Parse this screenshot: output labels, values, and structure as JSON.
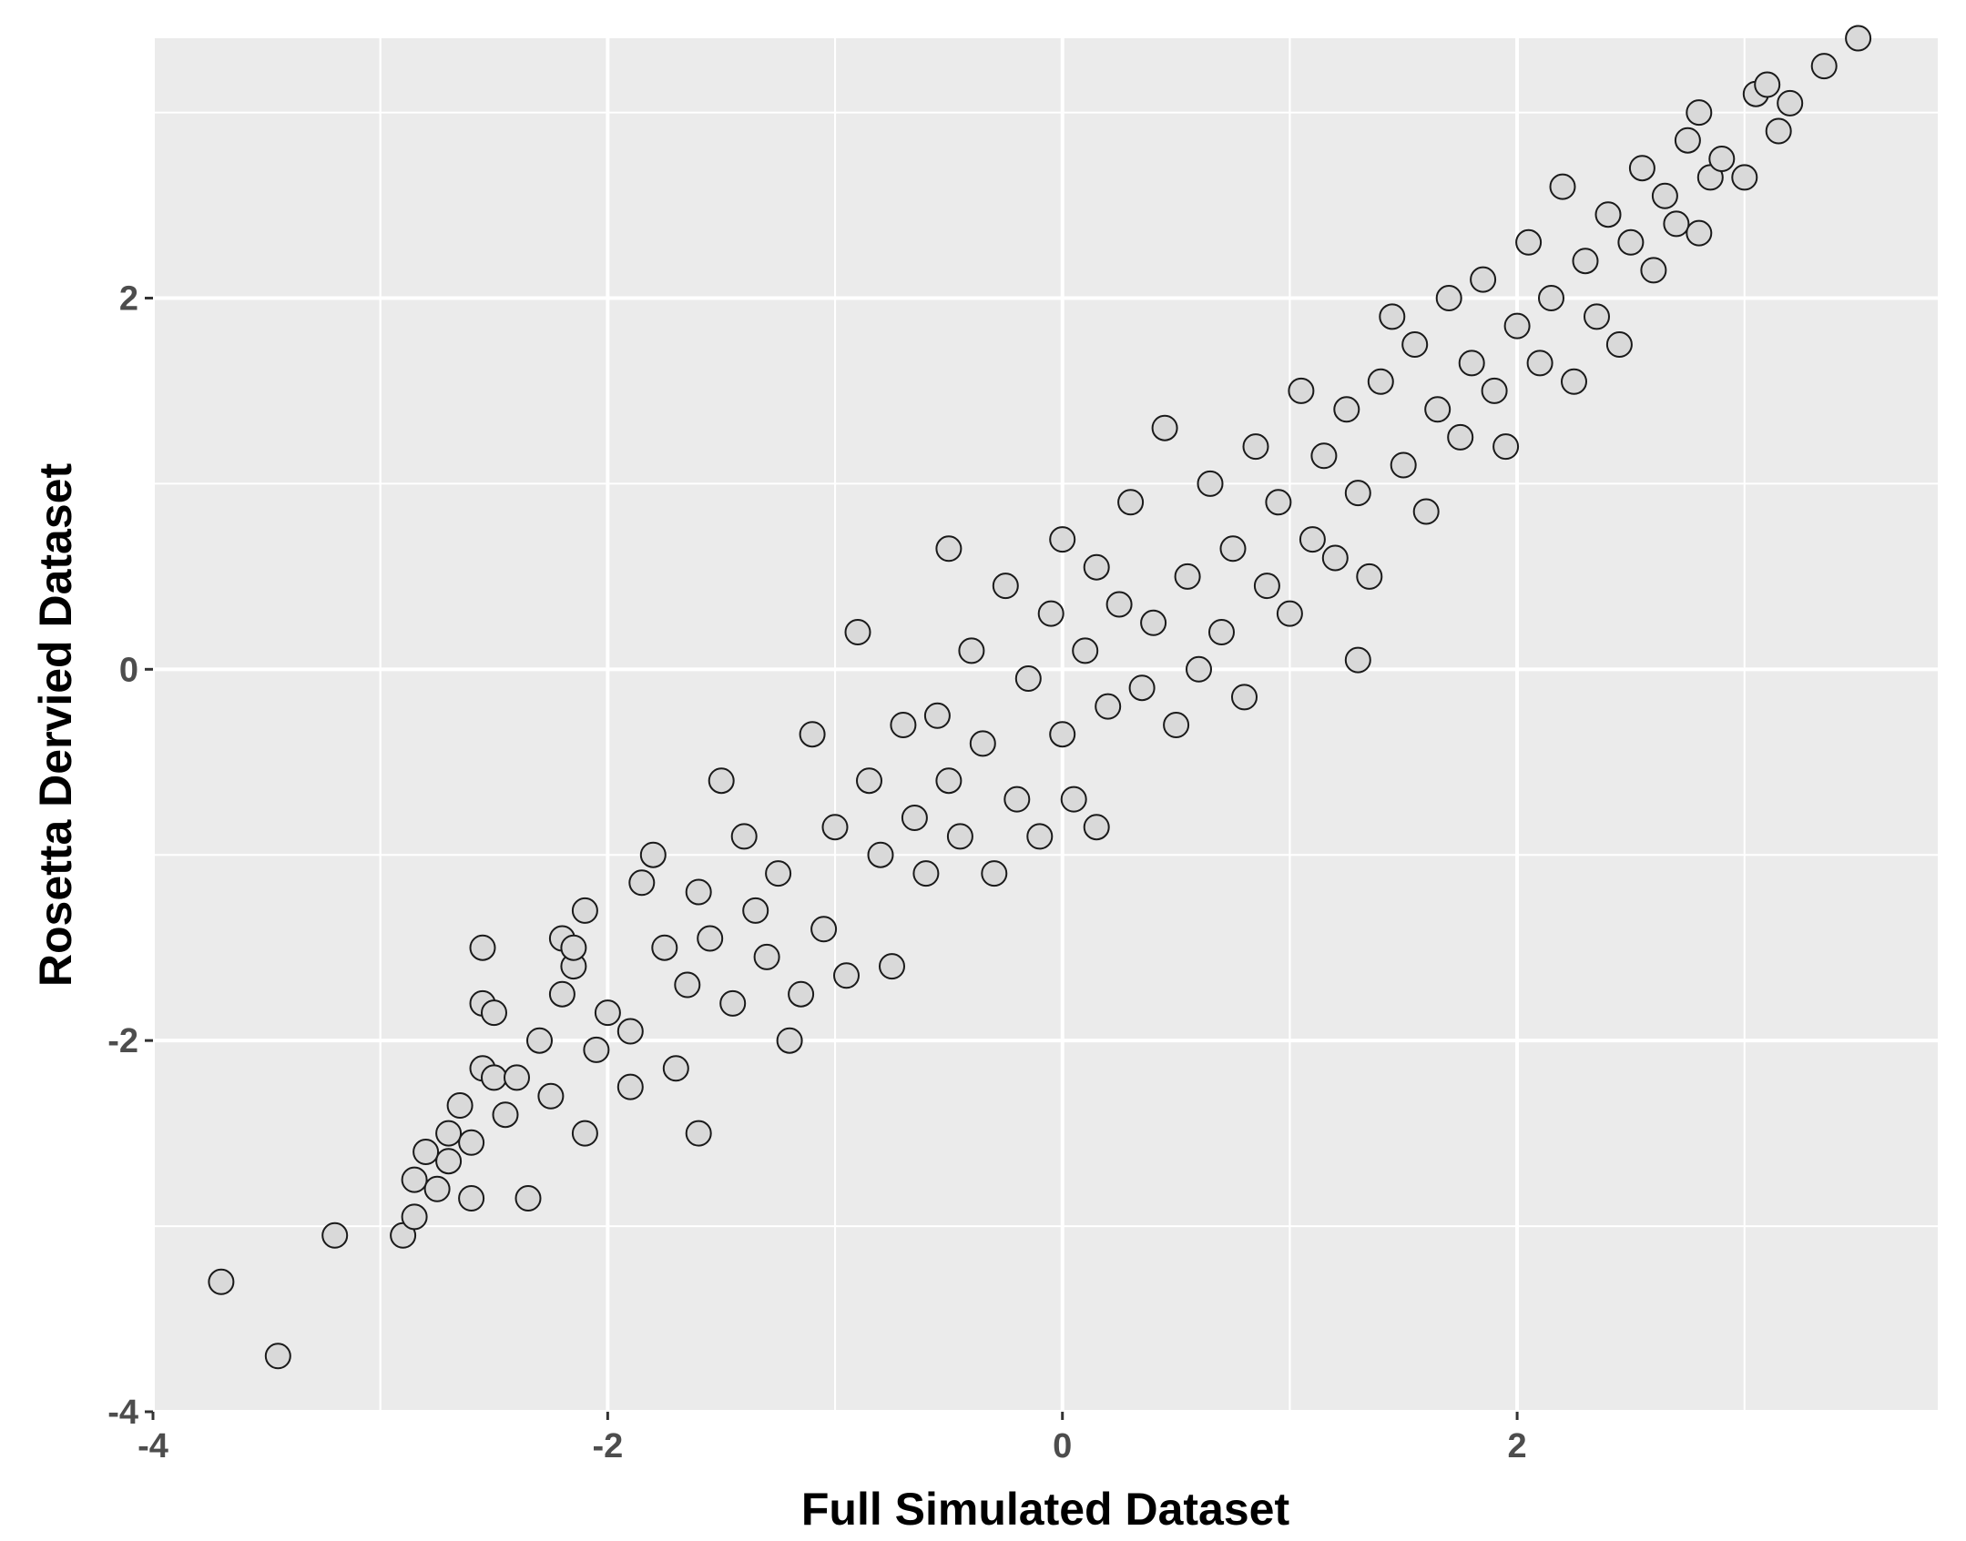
{
  "chart_data": {
    "type": "scatter",
    "title": "",
    "xlabel": "Full Simulated Dataset",
    "ylabel": "Rosetta Dervied Dataset",
    "xlim": [
      -4.0,
      3.85
    ],
    "ylim": [
      -4.0,
      3.4
    ],
    "xticks": [
      -4,
      -2,
      0,
      2
    ],
    "yticks": [
      -4,
      -2,
      0,
      2
    ],
    "xtick_labels": [
      "-4",
      "-2",
      "0",
      "2"
    ],
    "ytick_labels": [
      "-4",
      "-2",
      "0",
      "2"
    ],
    "grid": true,
    "legend": "none",
    "colors": {
      "panel": "#ebebeb",
      "grid": "#ffffff",
      "point_fill": "#d9d9d9",
      "point_edge": "#1a1a1a",
      "tick_text": "#4d4d4d",
      "tick_mark": "#333333"
    },
    "points": [
      [
        -3.7,
        -3.3
      ],
      [
        -3.45,
        -3.7
      ],
      [
        -3.2,
        -3.05
      ],
      [
        -2.9,
        -3.05
      ],
      [
        -2.85,
        -2.95
      ],
      [
        -2.85,
        -2.75
      ],
      [
        -2.8,
        -2.6
      ],
      [
        -2.75,
        -2.8
      ],
      [
        -2.7,
        -2.5
      ],
      [
        -2.7,
        -2.65
      ],
      [
        -2.65,
        -2.35
      ],
      [
        -2.6,
        -2.55
      ],
      [
        -2.6,
        -2.85
      ],
      [
        -2.55,
        -2.15
      ],
      [
        -2.55,
        -1.5
      ],
      [
        -2.55,
        -1.8
      ],
      [
        -2.5,
        -1.85
      ],
      [
        -2.5,
        -2.2
      ],
      [
        -2.45,
        -2.4
      ],
      [
        -2.4,
        -2.2
      ],
      [
        -2.35,
        -2.85
      ],
      [
        -2.3,
        -2.0
      ],
      [
        -2.25,
        -2.3
      ],
      [
        -2.2,
        -1.75
      ],
      [
        -2.2,
        -1.45
      ],
      [
        -2.15,
        -1.6
      ],
      [
        -2.15,
        -1.5
      ],
      [
        -2.1,
        -1.3
      ],
      [
        -2.1,
        -2.5
      ],
      [
        -2.05,
        -2.05
      ],
      [
        -2.0,
        -1.85
      ],
      [
        -1.9,
        -1.95
      ],
      [
        -1.9,
        -2.25
      ],
      [
        -1.85,
        -1.15
      ],
      [
        -1.8,
        -1.0
      ],
      [
        -1.75,
        -1.5
      ],
      [
        -1.7,
        -2.15
      ],
      [
        -1.65,
        -1.7
      ],
      [
        -1.6,
        -2.5
      ],
      [
        -1.6,
        -1.2
      ],
      [
        -1.55,
        -1.45
      ],
      [
        -1.5,
        -0.6
      ],
      [
        -1.45,
        -1.8
      ],
      [
        -1.4,
        -0.9
      ],
      [
        -1.35,
        -1.3
      ],
      [
        -1.3,
        -1.55
      ],
      [
        -1.25,
        -1.1
      ],
      [
        -1.2,
        -2.0
      ],
      [
        -1.15,
        -1.75
      ],
      [
        -1.1,
        -0.35
      ],
      [
        -1.05,
        -1.4
      ],
      [
        -1.0,
        -0.85
      ],
      [
        -0.95,
        -1.65
      ],
      [
        -0.9,
        0.2
      ],
      [
        -0.85,
        -0.6
      ],
      [
        -0.8,
        -1.0
      ],
      [
        -0.75,
        -1.6
      ],
      [
        -0.7,
        -0.3
      ],
      [
        -0.65,
        -0.8
      ],
      [
        -0.6,
        -1.1
      ],
      [
        -0.55,
        -0.25
      ],
      [
        -0.5,
        0.65
      ],
      [
        -0.5,
        -0.6
      ],
      [
        -0.45,
        -0.9
      ],
      [
        -0.4,
        0.1
      ],
      [
        -0.35,
        -0.4
      ],
      [
        -0.3,
        -1.1
      ],
      [
        -0.25,
        0.45
      ],
      [
        -0.2,
        -0.7
      ],
      [
        -0.15,
        -0.05
      ],
      [
        -0.1,
        -0.9
      ],
      [
        -0.05,
        0.3
      ],
      [
        0.0,
        0.7
      ],
      [
        0.0,
        -0.35
      ],
      [
        0.05,
        -0.7
      ],
      [
        0.1,
        0.1
      ],
      [
        0.15,
        0.55
      ],
      [
        0.15,
        -0.85
      ],
      [
        0.2,
        -0.2
      ],
      [
        0.25,
        0.35
      ],
      [
        0.3,
        0.9
      ],
      [
        0.35,
        -0.1
      ],
      [
        0.4,
        0.25
      ],
      [
        0.45,
        1.3
      ],
      [
        0.5,
        -0.3
      ],
      [
        0.55,
        0.5
      ],
      [
        0.6,
        0.0
      ],
      [
        0.65,
        1.0
      ],
      [
        0.7,
        0.2
      ],
      [
        0.75,
        0.65
      ],
      [
        0.8,
        -0.15
      ],
      [
        0.85,
        1.2
      ],
      [
        0.9,
        0.45
      ],
      [
        0.95,
        0.9
      ],
      [
        1.0,
        0.3
      ],
      [
        1.05,
        1.5
      ],
      [
        1.1,
        0.7
      ],
      [
        1.15,
        1.15
      ],
      [
        1.2,
        0.6
      ],
      [
        1.25,
        1.4
      ],
      [
        1.3,
        0.05
      ],
      [
        1.3,
        0.95
      ],
      [
        1.35,
        0.5
      ],
      [
        1.4,
        1.55
      ],
      [
        1.45,
        1.9
      ],
      [
        1.5,
        1.1
      ],
      [
        1.55,
        1.75
      ],
      [
        1.6,
        0.85
      ],
      [
        1.65,
        1.4
      ],
      [
        1.7,
        2.0
      ],
      [
        1.75,
        1.25
      ],
      [
        1.8,
        1.65
      ],
      [
        1.85,
        2.1
      ],
      [
        1.9,
        1.5
      ],
      [
        1.95,
        1.2
      ],
      [
        2.0,
        1.85
      ],
      [
        2.05,
        2.3
      ],
      [
        2.1,
        1.65
      ],
      [
        2.15,
        2.0
      ],
      [
        2.2,
        2.6
      ],
      [
        2.25,
        1.55
      ],
      [
        2.3,
        2.2
      ],
      [
        2.35,
        1.9
      ],
      [
        2.4,
        2.45
      ],
      [
        2.45,
        1.75
      ],
      [
        2.5,
        2.3
      ],
      [
        2.55,
        2.7
      ],
      [
        2.6,
        2.15
      ],
      [
        2.65,
        2.55
      ],
      [
        2.7,
        2.4
      ],
      [
        2.75,
        2.85
      ],
      [
        2.8,
        3.0
      ],
      [
        2.8,
        2.35
      ],
      [
        2.85,
        2.65
      ],
      [
        2.9,
        2.75
      ],
      [
        3.0,
        2.65
      ],
      [
        3.05,
        3.1
      ],
      [
        3.1,
        3.15
      ],
      [
        3.15,
        2.9
      ],
      [
        3.2,
        3.05
      ],
      [
        3.35,
        3.25
      ],
      [
        3.5,
        3.4
      ]
    ]
  }
}
